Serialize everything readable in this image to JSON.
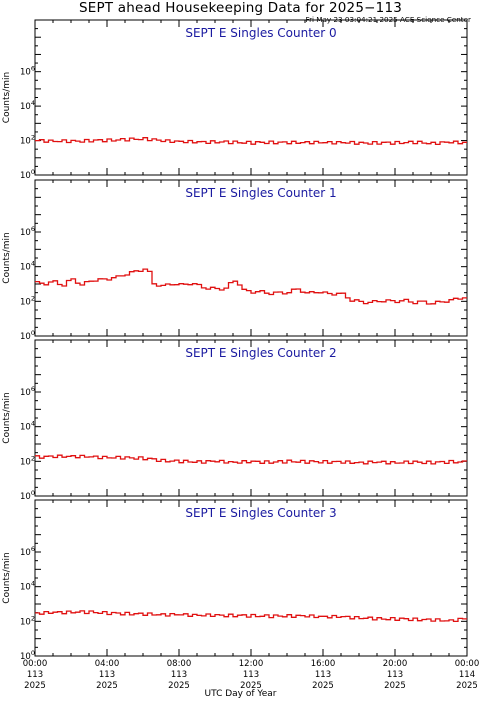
{
  "header": {
    "title": "SEPT ahead Housekeeping Data for 2025−113",
    "timestamp": "Fri May 23 03:04:21 2025 ACE Science Center"
  },
  "xaxis": {
    "label": "UTC Day of Year",
    "ticks": [
      {
        "hour": 0,
        "time": "00:00",
        "doy": "113",
        "year": "2025"
      },
      {
        "hour": 4,
        "time": "04:00",
        "doy": "113",
        "year": "2025"
      },
      {
        "hour": 8,
        "time": "08:00",
        "doy": "113",
        "year": "2025"
      },
      {
        "hour": 12,
        "time": "12:00",
        "doy": "113",
        "year": "2025"
      },
      {
        "hour": 16,
        "time": "16:00",
        "doy": "113",
        "year": "2025"
      },
      {
        "hour": 20,
        "time": "20:00",
        "doy": "113",
        "year": "2025"
      },
      {
        "hour": 24,
        "time": "00:00",
        "doy": "114",
        "year": "2025"
      }
    ]
  },
  "colors": {
    "series": "#e01010",
    "panel_title": "#1a1aa0"
  },
  "chart_data": [
    {
      "type": "line",
      "title": "SEPT E Singles Counter 0",
      "ylabel": "Counts/min",
      "yscale": "log",
      "ylim": [
        1,
        1000000000
      ],
      "xlim": [
        0,
        24
      ],
      "yticks": [
        {
          "exp": "0"
        },
        {
          "exp": "2"
        },
        {
          "exp": "4"
        },
        {
          "exp": "6"
        }
      ],
      "x": [
        0,
        1,
        2,
        3,
        4,
        5,
        6,
        7,
        8,
        9,
        10,
        11,
        12,
        13,
        14,
        15,
        16,
        17,
        18,
        19,
        20,
        21,
        22,
        23,
        24
      ],
      "values": [
        100,
        95,
        90,
        100,
        105,
        115,
        130,
        95,
        90,
        80,
        85,
        80,
        75,
        80,
        75,
        80,
        75,
        80,
        70,
        75,
        75,
        80,
        70,
        80,
        75
      ]
    },
    {
      "type": "line",
      "title": "SEPT E Singles Counter 1",
      "ylabel": "Counts/min",
      "yscale": "log",
      "ylim": [
        1,
        1000000000
      ],
      "xlim": [
        0,
        24
      ],
      "yticks": [
        {
          "exp": "0"
        },
        {
          "exp": "2"
        },
        {
          "exp": "4"
        },
        {
          "exp": "6"
        }
      ],
      "x": [
        0,
        0.5,
        1,
        1.5,
        2,
        2.5,
        3,
        3.5,
        4,
        4.5,
        5,
        5.5,
        6,
        6.5,
        7,
        7.5,
        8,
        8.5,
        9,
        9.5,
        10,
        10.5,
        11,
        11.5,
        12,
        12.5,
        13,
        13.5,
        14,
        14.5,
        15,
        15.5,
        16,
        16.5,
        17,
        17.5,
        18,
        18.5,
        19,
        19.5,
        20,
        20.5,
        21,
        21.5,
        22,
        22.5,
        23,
        23.5,
        24
      ],
      "values": [
        1200,
        1100,
        1300,
        900,
        1800,
        900,
        1500,
        1800,
        2000,
        2500,
        4000,
        5000,
        8000,
        1000,
        800,
        1000,
        900,
        1100,
        800,
        600,
        500,
        600,
        1500,
        450,
        350,
        350,
        300,
        300,
        350,
        500,
        300,
        350,
        300,
        280,
        250,
        120,
        90,
        90,
        100,
        110,
        100,
        110,
        90,
        90,
        80,
        90,
        120,
        150,
        180
      ]
    },
    {
      "type": "line",
      "title": "SEPT E Singles Counter 2",
      "ylabel": "Counts/min",
      "yscale": "log",
      "ylim": [
        1,
        1000000000
      ],
      "xlim": [
        0,
        24
      ],
      "yticks": [
        {
          "exp": "0"
        },
        {
          "exp": "2"
        },
        {
          "exp": "4"
        },
        {
          "exp": "6"
        }
      ],
      "x": [
        0,
        1,
        2,
        3,
        4,
        5,
        6,
        7,
        8,
        9,
        10,
        11,
        12,
        13,
        14,
        15,
        16,
        17,
        18,
        19,
        20,
        21,
        22,
        23,
        24
      ],
      "values": [
        180,
        190,
        200,
        180,
        170,
        160,
        150,
        110,
        100,
        95,
        100,
        90,
        95,
        90,
        100,
        95,
        95,
        90,
        85,
        90,
        85,
        90,
        85,
        95,
        90
      ]
    },
    {
      "type": "line",
      "title": "SEPT E Singles Counter 3",
      "ylabel": "Counts/min",
      "yscale": "log",
      "ylim": [
        1,
        1000000000
      ],
      "xlim": [
        0,
        24
      ],
      "yticks": [
        {
          "exp": "0"
        },
        {
          "exp": "2"
        },
        {
          "exp": "4"
        },
        {
          "exp": "6"
        }
      ],
      "x": [
        0,
        1,
        2,
        3,
        4,
        5,
        6,
        7,
        8,
        9,
        10,
        11,
        12,
        13,
        14,
        15,
        16,
        17,
        18,
        19,
        20,
        21,
        22,
        23,
        24
      ],
      "values": [
        300,
        320,
        350,
        340,
        300,
        280,
        260,
        250,
        240,
        230,
        220,
        220,
        210,
        200,
        210,
        200,
        190,
        180,
        160,
        140,
        140,
        130,
        120,
        110,
        150
      ]
    }
  ]
}
